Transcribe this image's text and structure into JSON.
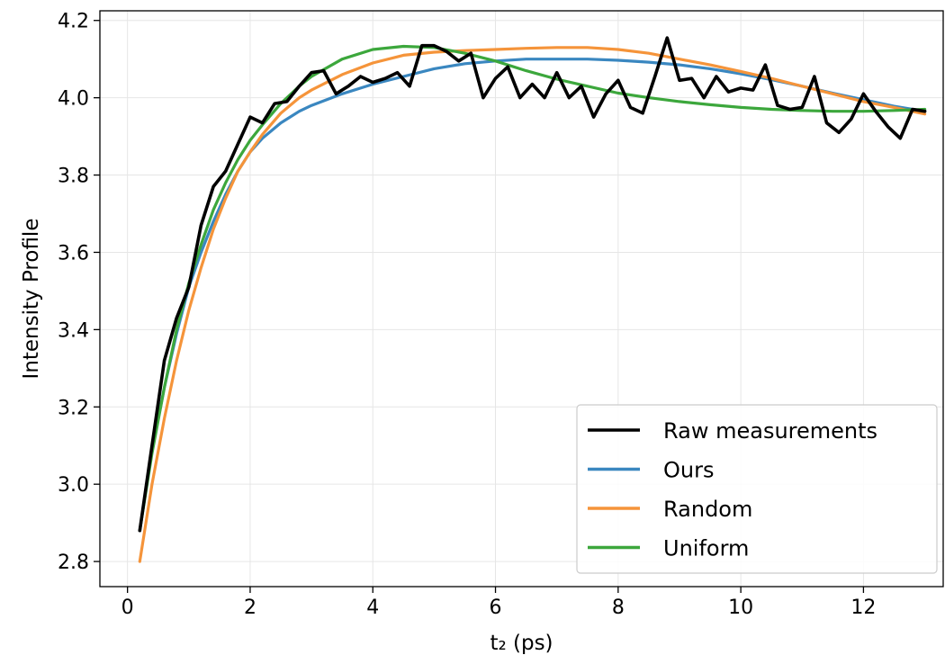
{
  "chart_data": {
    "type": "line",
    "title": "",
    "xlabel": "t₂ (ps)",
    "ylabel": "Intensity Profile",
    "xlim": [
      -0.45,
      13.3
    ],
    "ylim": [
      2.735,
      4.225
    ],
    "xticks": [
      0,
      2,
      4,
      6,
      8,
      10,
      12
    ],
    "yticks": [
      2.8,
      3.0,
      3.2,
      3.4,
      3.6,
      3.8,
      4.0,
      4.2
    ],
    "xtick_labels": [
      "0",
      "2",
      "4",
      "6",
      "8",
      "10",
      "12"
    ],
    "ytick_labels": [
      "2.8",
      "3.0",
      "3.2",
      "3.4",
      "3.6",
      "3.8",
      "4.0",
      "4.2"
    ],
    "grid": true,
    "legend_position": "lower-right",
    "series": [
      {
        "name": "Raw measurements",
        "color": "#000000",
        "x": [
          0.2,
          0.4,
          0.6,
          0.8,
          1.0,
          1.2,
          1.4,
          1.6,
          1.8,
          2.0,
          2.2,
          2.4,
          2.6,
          2.8,
          3.0,
          3.2,
          3.4,
          3.6,
          3.8,
          4.0,
          4.2,
          4.4,
          4.6,
          4.8,
          5.0,
          5.2,
          5.4,
          5.6,
          5.8,
          6.0,
          6.2,
          6.4,
          6.6,
          6.8,
          7.0,
          7.2,
          7.4,
          7.6,
          7.8,
          8.0,
          8.2,
          8.4,
          8.6,
          8.8,
          9.0,
          9.2,
          9.4,
          9.6,
          9.8,
          10.0,
          10.2,
          10.4,
          10.6,
          10.8,
          11.0,
          11.2,
          11.4,
          11.6,
          11.8,
          12.0,
          12.2,
          12.4,
          12.6,
          12.8,
          13.0
        ],
        "y": [
          2.88,
          3.1,
          3.32,
          3.43,
          3.51,
          3.67,
          3.77,
          3.81,
          3.88,
          3.95,
          3.935,
          3.985,
          3.99,
          4.03,
          4.065,
          4.07,
          4.01,
          4.03,
          4.055,
          4.04,
          4.05,
          4.065,
          4.03,
          4.135,
          4.135,
          4.12,
          4.095,
          4.115,
          4.0,
          4.05,
          4.08,
          4.0,
          4.035,
          4.0,
          4.065,
          4.0,
          4.03,
          3.95,
          4.01,
          4.045,
          3.975,
          3.96,
          4.055,
          4.155,
          4.045,
          4.05,
          4.0,
          4.055,
          4.015,
          4.025,
          4.02,
          4.085,
          3.98,
          3.97,
          3.975,
          4.055,
          3.935,
          3.91,
          3.945,
          4.01,
          3.965,
          3.925,
          3.895,
          3.97,
          3.965
        ]
      },
      {
        "name": "Ours",
        "color": "#3a87c0",
        "x": [
          0.2,
          0.4,
          0.6,
          0.8,
          1.0,
          1.2,
          1.4,
          1.6,
          1.8,
          2.0,
          2.2,
          2.5,
          2.8,
          3.0,
          3.5,
          4.0,
          4.5,
          5.0,
          5.5,
          6.0,
          6.5,
          7.0,
          7.5,
          8.0,
          8.5,
          9.0,
          9.5,
          10.0,
          10.5,
          11.0,
          11.5,
          12.0,
          12.5,
          13.0
        ],
        "y": [
          2.88,
          3.09,
          3.25,
          3.39,
          3.51,
          3.6,
          3.68,
          3.75,
          3.81,
          3.86,
          3.895,
          3.935,
          3.965,
          3.98,
          4.01,
          4.035,
          4.055,
          4.075,
          4.088,
          4.095,
          4.1,
          4.1,
          4.1,
          4.097,
          4.092,
          4.085,
          4.075,
          4.062,
          4.047,
          4.03,
          4.012,
          3.995,
          3.978,
          3.965
        ]
      },
      {
        "name": "Random",
        "color": "#f5943a",
        "x": [
          0.2,
          0.4,
          0.6,
          0.8,
          1.0,
          1.2,
          1.4,
          1.6,
          1.8,
          2.0,
          2.2,
          2.5,
          2.8,
          3.0,
          3.5,
          4.0,
          4.5,
          5.0,
          5.5,
          6.0,
          6.5,
          7.0,
          7.5,
          8.0,
          8.5,
          9.0,
          9.5,
          10.0,
          10.5,
          11.0,
          11.5,
          12.0,
          12.5,
          13.0
        ],
        "y": [
          2.8,
          3.0,
          3.17,
          3.32,
          3.45,
          3.56,
          3.66,
          3.74,
          3.81,
          3.86,
          3.905,
          3.96,
          4.0,
          4.02,
          4.06,
          4.09,
          4.11,
          4.118,
          4.122,
          4.125,
          4.128,
          4.13,
          4.13,
          4.125,
          4.115,
          4.1,
          4.085,
          4.068,
          4.05,
          4.03,
          4.01,
          3.99,
          3.975,
          3.958
        ]
      },
      {
        "name": "Uniform",
        "color": "#3ca73c",
        "x": [
          0.2,
          0.4,
          0.6,
          0.8,
          1.0,
          1.2,
          1.4,
          1.6,
          1.8,
          2.0,
          2.2,
          2.5,
          2.8,
          3.0,
          3.5,
          4.0,
          4.5,
          5.0,
          5.5,
          6.0,
          6.5,
          7.0,
          7.5,
          8.0,
          8.5,
          9.0,
          9.5,
          10.0,
          10.5,
          11.0,
          11.5,
          12.0,
          12.5,
          13.0
        ],
        "y": [
          2.88,
          3.08,
          3.25,
          3.4,
          3.52,
          3.62,
          3.71,
          3.78,
          3.84,
          3.89,
          3.93,
          3.985,
          4.03,
          4.055,
          4.1,
          4.125,
          4.133,
          4.13,
          4.115,
          4.095,
          4.07,
          4.048,
          4.03,
          4.012,
          4.0,
          3.99,
          3.982,
          3.975,
          3.97,
          3.967,
          3.965,
          3.965,
          3.967,
          3.97
        ]
      }
    ]
  }
}
